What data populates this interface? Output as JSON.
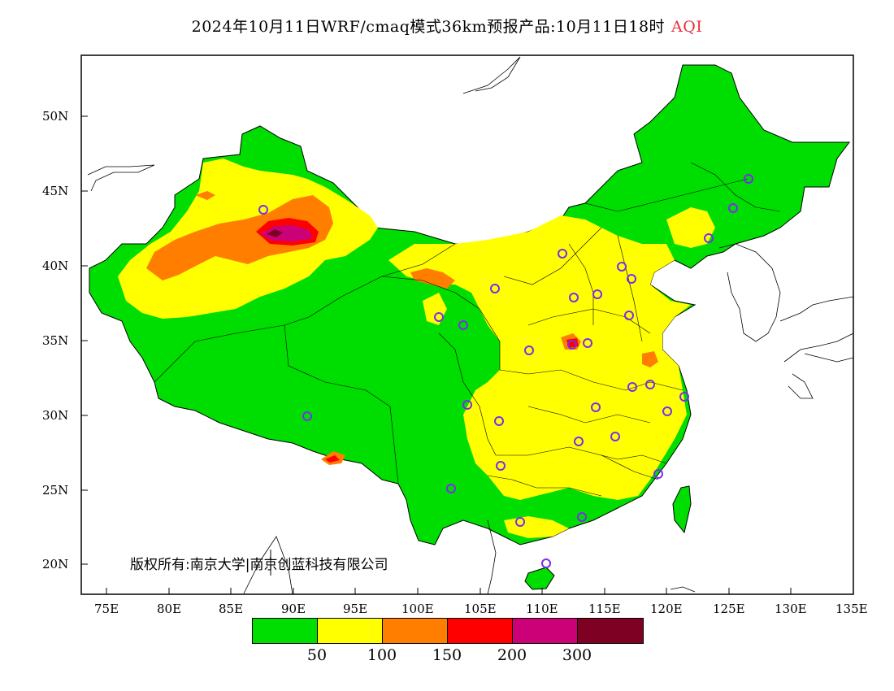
{
  "header": {
    "title": "2024年10月11日WRF/cmaq模式36km预报产品:10月11日18时",
    "variable": "AQI"
  },
  "map": {
    "lat_labels": [
      "50N",
      "45N",
      "40N",
      "35N",
      "30N",
      "25N",
      "20N"
    ],
    "lon_labels": [
      "75E",
      "80E",
      "85E",
      "90E",
      "95E",
      "100E",
      "105E",
      "110E",
      "115E",
      "120E",
      "125E",
      "130E",
      "135E"
    ],
    "extent": {
      "lon_min": 73,
      "lon_max": 135,
      "lat_min": 18,
      "lat_max": 54
    },
    "copyright": "版权所有:南京大学|南京创蓝科技有限公司"
  },
  "legend": {
    "colors": [
      "#00dd00",
      "#ffff00",
      "#ff7e00",
      "#ff0000",
      "#cc0077",
      "#7e0023"
    ],
    "ticks": [
      "50",
      "100",
      "150",
      "200",
      "300"
    ]
  },
  "chart_data": {
    "type": "heatmap",
    "title": "2024年10月11日WRF/cmaq模式36km预报产品:10月11日18时",
    "variable": "AQI",
    "color_scale": [
      {
        "range": "<50",
        "color": "#00dd00"
      },
      {
        "range": "50-100",
        "color": "#ffff00"
      },
      {
        "range": "100-150",
        "color": "#ff7e00"
      },
      {
        "range": "150-200",
        "color": "#ff0000"
      },
      {
        "range": "200-300",
        "color": "#cc0077"
      },
      {
        "range": ">300",
        "color": "#7e0023"
      }
    ],
    "xlim": [
      73,
      135
    ],
    "ylim": [
      18,
      54
    ]
  }
}
